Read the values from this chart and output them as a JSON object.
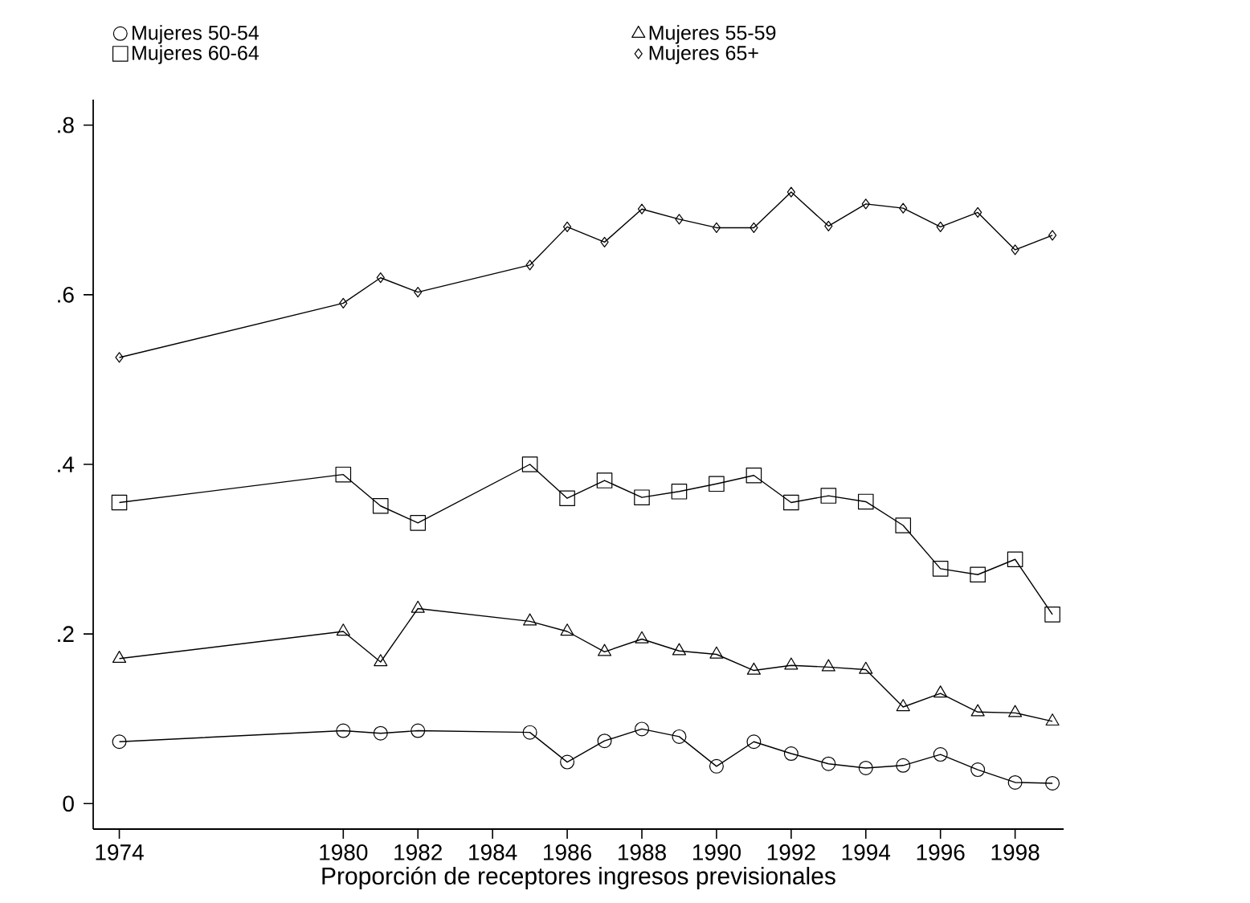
{
  "chart_data": {
    "type": "line",
    "x": [
      1974,
      1980,
      1981,
      1982,
      1985,
      1986,
      1987,
      1988,
      1989,
      1990,
      1991,
      1992,
      1993,
      1994,
      1995,
      1996,
      1997,
      1998,
      1999
    ],
    "series": [
      {
        "name": "Mujeres 50-54",
        "color": "#000000",
        "marker": "circle",
        "values": [
          0.073,
          0.086,
          0.083,
          0.086,
          0.084,
          0.049,
          0.074,
          0.088,
          0.079,
          0.044,
          0.073,
          0.059,
          0.047,
          0.042,
          0.045,
          0.058,
          0.04,
          0.025,
          0.024
        ]
      },
      {
        "name": "Mujeres 55-59",
        "color": "#000000",
        "marker": "triangle",
        "values": [
          0.171,
          0.203,
          0.167,
          0.23,
          0.215,
          0.203,
          0.179,
          0.194,
          0.18,
          0.176,
          0.157,
          0.163,
          0.161,
          0.158,
          0.114,
          0.13,
          0.108,
          0.107,
          0.097
        ]
      },
      {
        "name": "Mujeres 60-64",
        "color": "#000000",
        "marker": "square",
        "values": [
          0.355,
          0.388,
          0.351,
          0.331,
          0.4,
          0.36,
          0.381,
          0.361,
          0.368,
          0.377,
          0.387,
          0.355,
          0.363,
          0.356,
          0.328,
          0.277,
          0.27,
          0.288,
          0.223
        ]
      },
      {
        "name": "Mujeres 65+",
        "color": "#000000",
        "marker": "diamond",
        "values": [
          0.526,
          0.59,
          0.62,
          0.603,
          0.635,
          0.68,
          0.662,
          0.701,
          0.689,
          0.679,
          0.679,
          0.721,
          0.681,
          0.707,
          0.702,
          0.68,
          0.697,
          0.653,
          0.67
        ]
      }
    ],
    "xlabel": "Proporción de receptores ingresos previsionales",
    "xlim": [
      1973.3,
      1999.3
    ],
    "ylim": [
      -0.03,
      0.83
    ],
    "xticks": [
      1974,
      1980,
      1982,
      1984,
      1986,
      1988,
      1990,
      1992,
      1994,
      1996,
      1998
    ],
    "yticks": [
      0,
      {
        "value": 0.2,
        "label": ".2"
      },
      {
        "value": 0.4,
        "label": ".4"
      },
      {
        "value": 0.6,
        "label": ".6"
      },
      {
        "value": 0.8,
        "label": ".8"
      }
    ],
    "grid": false,
    "legend": "top",
    "line_style": "solid"
  }
}
